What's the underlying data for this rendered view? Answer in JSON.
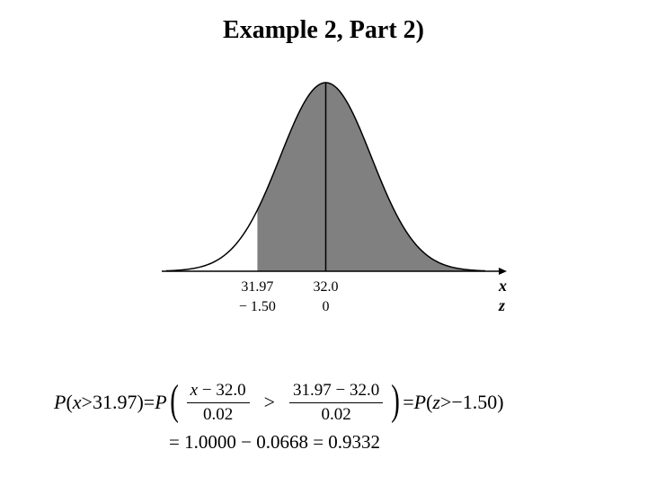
{
  "title": "Example 2, Part 2)",
  "chart": {
    "type": "area",
    "mu": 32.0,
    "sigma": 0.02,
    "threshold_x": 31.97,
    "threshold_z": -1.5,
    "x_axis_label": "x",
    "z_axis_label": "z",
    "x_ticks": [
      "31.97",
      "32.0"
    ],
    "z_ticks": [
      "− 1.50",
      "0"
    ],
    "curve_stroke": "#000000",
    "shade_fill": "#808080",
    "background": "#ffffff",
    "axis_color": "#000000",
    "axis_label_fontsize": 18,
    "tick_fontsize": 16,
    "xlim_z": [
      -3.5,
      3.5
    ]
  },
  "eq": {
    "lhs_P": "P",
    "lhs_open": "(",
    "lhs_x": "x",
    "lhs_gt": " > ",
    "lhs_val": "31.97",
    "lhs_close": ")",
    "eq": " = ",
    "mid_P": "P",
    "frac1_num_x": "x ",
    "frac1_num_minus": "− ",
    "frac1_num_val": "32.0",
    "frac1_den": "0.02",
    "mid_gt": ">",
    "frac2_num_a": "31.97 ",
    "frac2_num_minus": "− ",
    "frac2_num_b": "32.0",
    "frac2_den": "0.02",
    "rhs_eq": " = ",
    "rhs_P": "P",
    "rhs_open": "(",
    "rhs_z": "z",
    "rhs_gt": " > ",
    "rhs_minus": "− ",
    "rhs_val": "1.50",
    "rhs_close": ")",
    "line2_eq1": "= ",
    "line2_a": "1.0000 ",
    "line2_minus": "− ",
    "line2_b": "0.0668 ",
    "line2_eq2": "= ",
    "line2_res": "0.9332"
  }
}
